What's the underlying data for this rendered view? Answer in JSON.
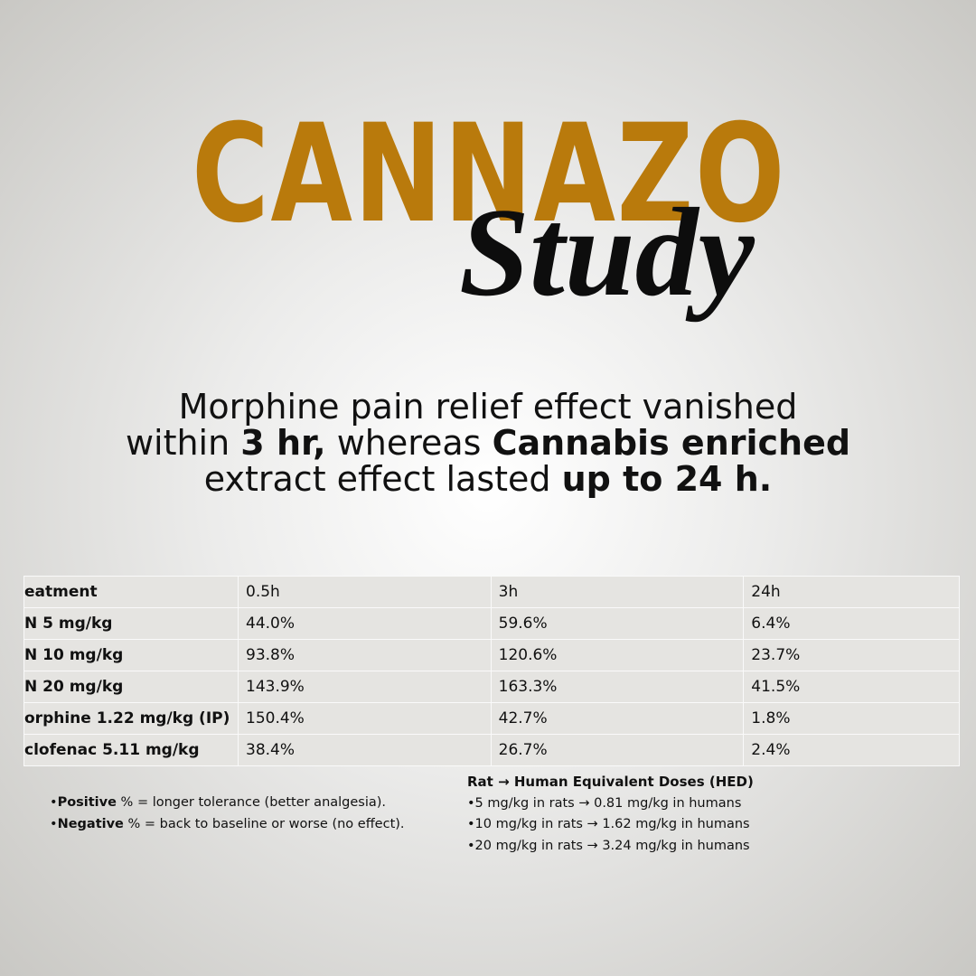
{
  "brand": {
    "title": "CANNAZO",
    "subtitle": "Study"
  },
  "headline": {
    "lines": [
      [
        {
          "text": "Morphine pain relief effect vanished",
          "bold": false
        }
      ],
      [
        {
          "text": "within ",
          "bold": false
        },
        {
          "text": "3 hr,",
          "bold": true
        },
        {
          "text": " whereas ",
          "bold": false
        },
        {
          "text": "Cannabis enriched",
          "bold": true
        }
      ],
      [
        {
          "text": "extract effect lasted ",
          "bold": false
        },
        {
          "text": "up to 24 h.",
          "bold": true
        }
      ]
    ]
  },
  "table": {
    "header": [
      "eatment",
      "0.5h",
      "3h",
      "24h"
    ],
    "rows": [
      [
        "N 5 mg/kg",
        "44.0%",
        "59.6%",
        "6.4%"
      ],
      [
        "N 10 mg/kg",
        "93.8%",
        "120.6%",
        "23.7%"
      ],
      [
        "N 20 mg/kg",
        "143.9%",
        "163.3%",
        "41.5%"
      ],
      [
        "orphine 1.22 mg/kg (IP)",
        "150.4%",
        "42.7%",
        "1.8%"
      ],
      [
        "clofenac 5.11 mg/kg",
        "38.4%",
        "26.7%",
        "2.4%"
      ]
    ]
  },
  "notes": [
    [
      {
        "text": "•",
        "bold": false
      },
      {
        "text": "Positive",
        "bold": true
      },
      {
        "text": " % = longer tolerance (better analgesia).",
        "bold": false
      }
    ],
    [
      {
        "text": "•",
        "bold": false
      },
      {
        "text": "Negative",
        "bold": true
      },
      {
        "text": " % = back to baseline or worse (no effect).",
        "bold": false
      }
    ]
  ],
  "hed": {
    "title": "Rat → Human Equivalent Doses (HED)",
    "lines": [
      "•5 mg/kg in rats → 0.81 mg/kg in humans",
      "•10 mg/kg in rats → 1.62 mg/kg in humans",
      "•20 mg/kg in rats → 3.24 mg/kg in humans"
    ]
  }
}
